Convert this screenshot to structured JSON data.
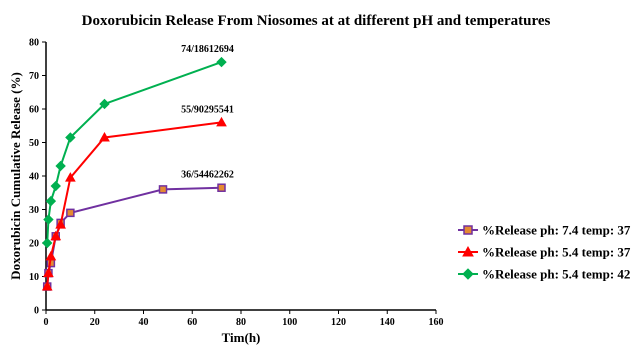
{
  "chart_data": {
    "type": "line",
    "title": "Doxorubicin Release From Niosomes at at different pH and temperatures",
    "xlabel": "Tim(h)",
    "ylabel": "Doxorubicin Cumulative Release (%)",
    "xlim": [
      0,
      160
    ],
    "ylim": [
      0,
      80
    ],
    "xticks": [
      "0",
      "20",
      "40",
      "60",
      "80",
      "100",
      "120",
      "140",
      "160"
    ],
    "yticks": [
      "0",
      "10",
      "20",
      "30",
      "40",
      "50",
      "60",
      "70",
      "80"
    ],
    "grid": false,
    "legend_position": "right",
    "series": [
      {
        "name": "%Release ph: 7.4 temp: 37",
        "color": "#7030a0",
        "marker": "square",
        "marker_fill": "#e58a32",
        "x": [
          0.5,
          1,
          2,
          4,
          6,
          10,
          48,
          72
        ],
        "y": [
          7,
          11,
          14,
          22,
          26,
          29,
          36,
          36.5
        ]
      },
      {
        "name": "%Release ph: 5.4 temp: 37",
        "color": "#ff0000",
        "marker": "triangle",
        "marker_fill": "#ff0000",
        "x": [
          0.5,
          1,
          2,
          4,
          6,
          10,
          24,
          72
        ],
        "y": [
          7,
          11,
          16,
          22,
          25.5,
          39.5,
          51.5,
          56
        ]
      },
      {
        "name": "%Release ph: 5.4 temp: 42",
        "color": "#00b050",
        "marker": "diamond",
        "marker_fill": "#00b050",
        "x": [
          0.5,
          1,
          2,
          4,
          6,
          10,
          24,
          72
        ],
        "y": [
          20,
          27,
          32.5,
          37,
          43,
          51.5,
          61.5,
          74
        ]
      }
    ],
    "annotations": [
      {
        "text": "74/18612694",
        "x": 72,
        "y": 74
      },
      {
        "text": "55/90295541",
        "x": 72,
        "y": 56
      },
      {
        "text": "36/54462262",
        "x": 72,
        "y": 36.5
      }
    ]
  }
}
